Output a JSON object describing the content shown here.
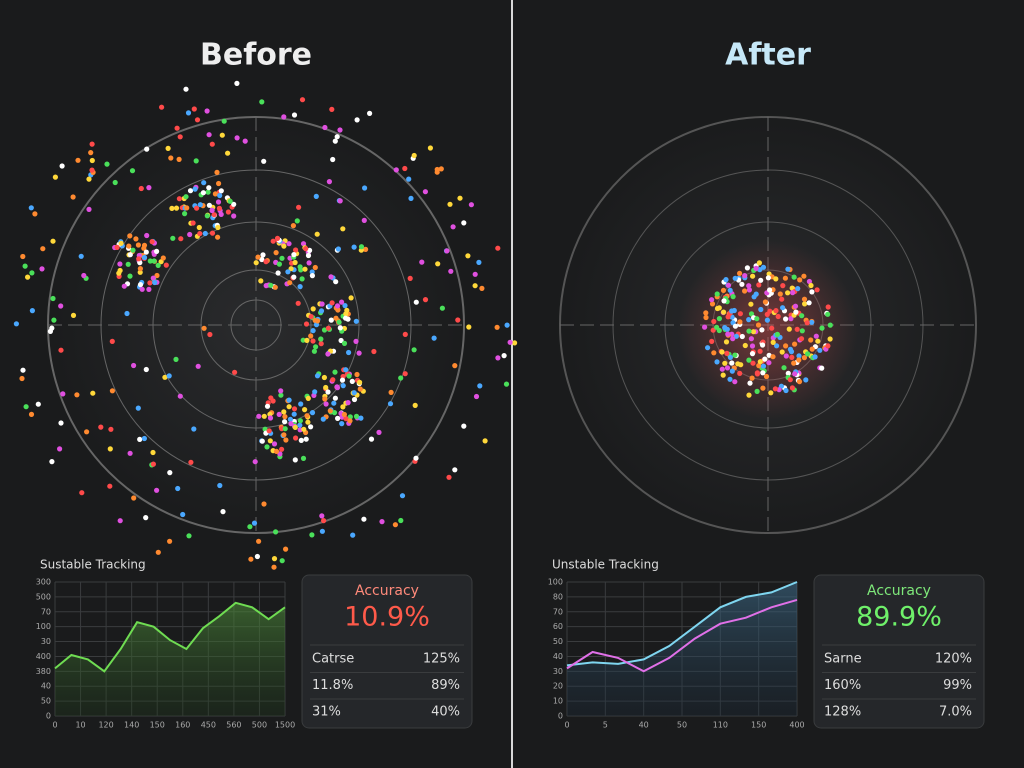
{
  "panels": [
    {
      "title": "Before",
      "chart": {
        "type": "line",
        "title": "Sustable Tracking",
        "ylim": [
          0,
          9
        ],
        "yticks": [
          {
            "value": 9,
            "label": "300"
          },
          {
            "value": 8,
            "label": "500"
          },
          {
            "value": 7,
            "label": "70"
          },
          {
            "value": 6,
            "label": "100"
          },
          {
            "value": 5,
            "label": "30"
          },
          {
            "value": 4,
            "label": "400"
          },
          {
            "value": 3,
            "label": "380"
          },
          {
            "value": 2,
            "label": "40"
          },
          {
            "value": 1,
            "label": "50"
          },
          {
            "value": 0,
            "label": "0"
          }
        ],
        "xtick_labels": [
          "0",
          "10",
          "120",
          "140",
          "150",
          "160",
          "450",
          "560",
          "500",
          "1500"
        ],
        "series": [
          {
            "color": "#6fdc52",
            "values": [
              3.2,
              4.1,
              3.8,
              3.0,
              4.5,
              6.3,
              6.0,
              5.1,
              4.5,
              5.9,
              6.7,
              7.6,
              7.3,
              6.5,
              7.3
            ]
          }
        ]
      },
      "card": {
        "title": "Accuracy",
        "value": "10.9%",
        "rows": [
          [
            "Catrse",
            "125%"
          ],
          [
            "11.8%",
            "89%"
          ],
          [
            "31%",
            "40%"
          ]
        ]
      }
    },
    {
      "title": "After",
      "chart": {
        "type": "line",
        "title": "Unstable Tracking",
        "ylim": [
          0,
          9
        ],
        "yticks": [
          {
            "value": 9,
            "label": "100"
          },
          {
            "value": 8,
            "label": "80"
          },
          {
            "value": 7,
            "label": "70"
          },
          {
            "value": 6,
            "label": "60"
          },
          {
            "value": 5,
            "label": "50"
          },
          {
            "value": 4,
            "label": "40"
          },
          {
            "value": 3,
            "label": "30"
          },
          {
            "value": 2,
            "label": "20"
          },
          {
            "value": 1,
            "label": "10"
          },
          {
            "value": 0,
            "label": "0"
          }
        ],
        "xtick_labels": [
          "0",
          "5",
          "40",
          "50",
          "110",
          "150",
          "400"
        ],
        "series": [
          {
            "color": "#7fd6f0",
            "values": [
              3.4,
              3.6,
              3.5,
              3.8,
              4.7,
              6.0,
              7.3,
              8.0,
              8.3,
              9.0
            ]
          },
          {
            "color": "#e070e8",
            "values": [
              3.2,
              4.3,
              3.9,
              3.0,
              3.9,
              5.2,
              6.2,
              6.6,
              7.3,
              7.8
            ]
          }
        ]
      },
      "card": {
        "title": "Accuracy",
        "value": "89.9%",
        "rows": [
          [
            "Sarne",
            "120%"
          ],
          [
            "160%",
            "99%"
          ],
          [
            "128%",
            "7.0%"
          ]
        ]
      }
    }
  ]
}
